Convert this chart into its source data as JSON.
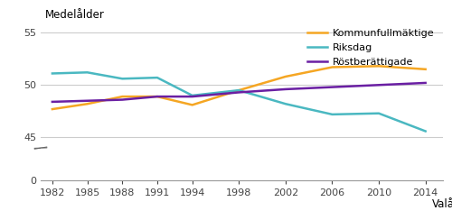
{
  "years": [
    1982,
    1985,
    1988,
    1991,
    1994,
    1998,
    2002,
    2006,
    2010,
    2014
  ],
  "kommunfullmaktige": [
    47.7,
    48.2,
    48.9,
    48.9,
    48.1,
    49.5,
    50.8,
    51.7,
    51.8,
    51.5
  ],
  "riksdag": [
    51.1,
    51.2,
    50.6,
    50.7,
    49.0,
    49.5,
    48.2,
    47.2,
    47.3,
    45.6
  ],
  "rostberättigade": [
    48.4,
    48.5,
    48.6,
    48.9,
    48.9,
    49.3,
    49.6,
    49.8,
    50.0,
    50.2
  ],
  "kommunfullmaktige_color": "#f5a623",
  "riksdag_color": "#4ab8c1",
  "rostberättigade_color": "#6a1fa3",
  "legend_labels": [
    "Kommunfullmäktige",
    "Riksdag",
    "Röstberättigade"
  ],
  "ylabel": "Medelålder",
  "xlabel_end": "Valår",
  "line_width": 1.8,
  "grid_color": "#cccccc",
  "bg_color": "#ffffff",
  "axis_color": "#999999",
  "font_size_legend": 8,
  "font_size_label": 8.5,
  "font_size_tick": 8
}
